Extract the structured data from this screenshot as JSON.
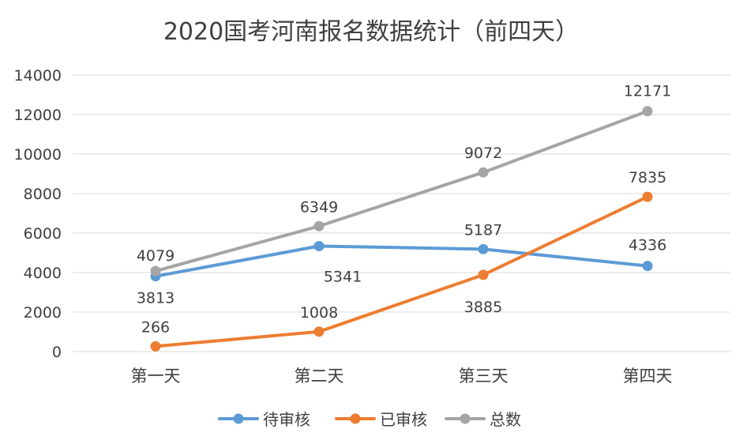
{
  "chart_data": {
    "type": "line",
    "title": "2020国考河南报名数据统计（前四天）",
    "categories": [
      "第一天",
      "第二天",
      "第三天",
      "第四天"
    ],
    "ylim": [
      0,
      14000
    ],
    "yticks": [
      0,
      2000,
      4000,
      6000,
      8000,
      10000,
      12000,
      14000
    ],
    "grid": true,
    "legend_position": "bottom",
    "series": [
      {
        "name": "待审核",
        "color": "#5B9BD5",
        "values": [
          3813,
          5341,
          5187,
          4336
        ]
      },
      {
        "name": "已审核",
        "color": "#ED7D31",
        "values": [
          266,
          1008,
          3885,
          7835
        ]
      },
      {
        "name": "总数",
        "color": "#A5A5A5",
        "values": [
          4079,
          6349,
          9072,
          12171
        ]
      }
    ]
  }
}
